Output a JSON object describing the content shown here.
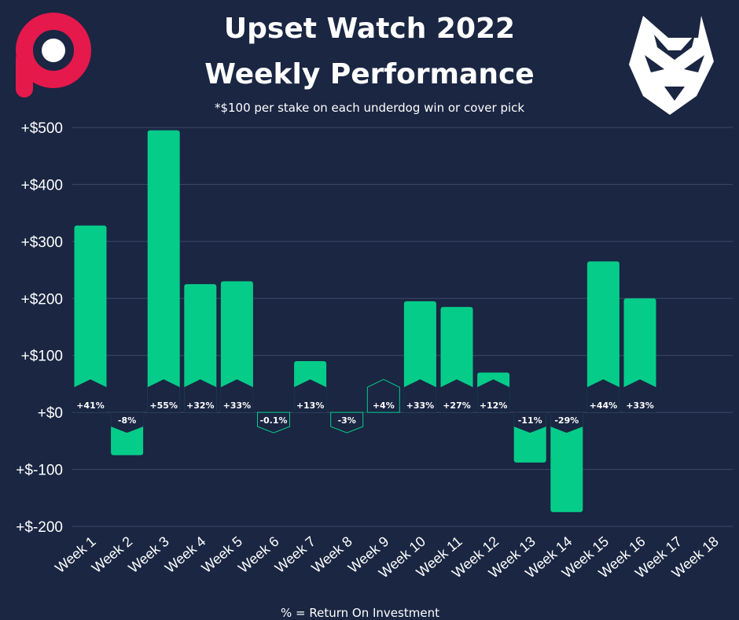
{
  "title_line1": "Upset Watch 2022",
  "title_line2": "Weekly Performance",
  "subtitle": "*$100 per stake on each underdog win or cover pick",
  "footer": "% = Return On Investment",
  "colors": {
    "background": "#1a2642",
    "bar": "#06cc8a",
    "label_dark": "#1a2642",
    "label_light": "#ffffff",
    "grid": "#3c4a68",
    "logo_left": "#e5194b",
    "logo_right": "#ffffff"
  },
  "logos": {
    "left_icon": "red-p-logo-icon",
    "right_icon": "white-wolf-logo-icon"
  },
  "chart_data": {
    "type": "bar",
    "categories": [
      "Week 1",
      "Week 2",
      "Week 3",
      "Week 4",
      "Week 5",
      "Week 6",
      "Week 7",
      "Week 8",
      "Week 9",
      "Week 10",
      "Week 11",
      "Week 12",
      "Week 13",
      "Week 14",
      "Week 15",
      "Week 16",
      "Week 17",
      "Week 18"
    ],
    "values": [
      328,
      -75,
      495,
      225,
      230,
      -1,
      90,
      -3,
      25,
      195,
      185,
      70,
      -88,
      -175,
      265,
      200,
      0,
      0
    ],
    "roi_labels": [
      "+41%",
      "-8%",
      "+55%",
      "+32%",
      "+33%",
      "-0.1%",
      "+13%",
      "-3%",
      "+4%",
      "+33%",
      "+27%",
      "+12%",
      "-11%",
      "-29%",
      "+44%",
      "+33%",
      "",
      ""
    ],
    "yticks": [
      "+$500",
      "+$400",
      "+$300",
      "+$200",
      "+$100",
      "+$0",
      "+$-100",
      "+$-200"
    ],
    "ytick_values": [
      500,
      400,
      300,
      200,
      100,
      0,
      -100,
      -200
    ],
    "ylim": [
      -200,
      500
    ],
    "grid": true,
    "title": "Upset Watch 2022 Weekly Performance",
    "xlabel": "",
    "ylabel": ""
  }
}
